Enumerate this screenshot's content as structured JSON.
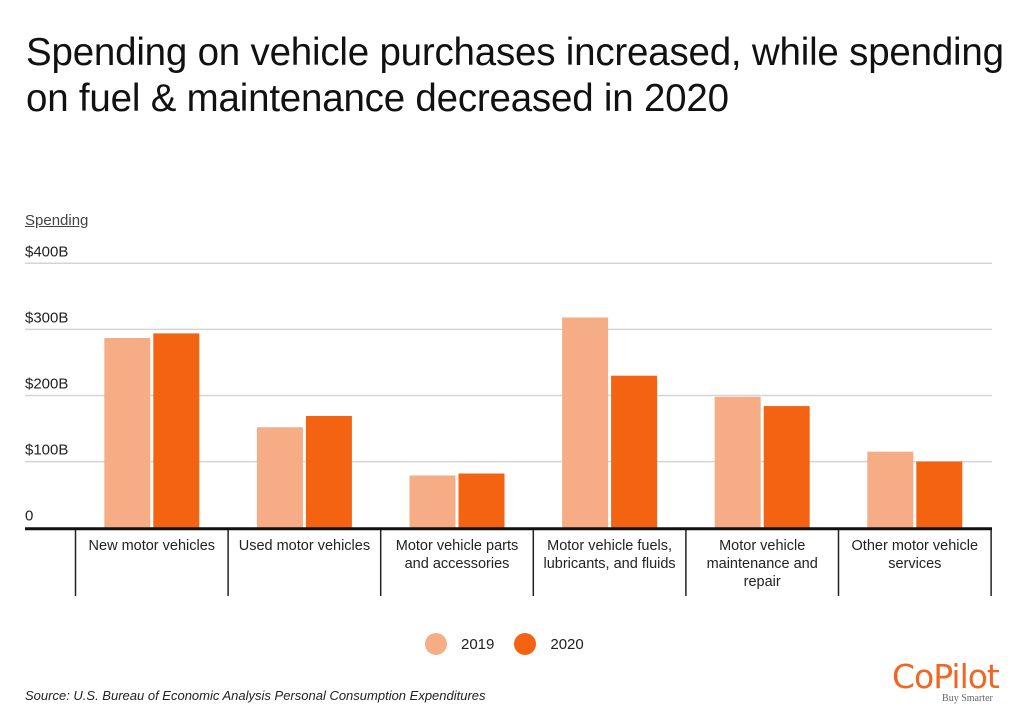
{
  "title": "Spending on vehicle purchases increased, while spending on fuel & maintenance decreased in 2020",
  "source": "Source:  U.S. Bureau of Economic Analysis Personal Consumption Expenditures",
  "logo": {
    "word": "CoPilot",
    "tagline": "Buy Smarter"
  },
  "chart_data": {
    "type": "bar",
    "title": "Spending on vehicle purchases increased, while spending on fuel & maintenance decreased in 2020",
    "ylabel": "Spending",
    "xlabel": "",
    "ylim": [
      0,
      400
    ],
    "yunit": "billions USD",
    "yticks": [
      {
        "value": 0,
        "label": "0"
      },
      {
        "value": 100,
        "label": "$100B"
      },
      {
        "value": 200,
        "label": "$200B"
      },
      {
        "value": 300,
        "label": "$300B"
      },
      {
        "value": 400,
        "label": "$400B"
      }
    ],
    "grid": true,
    "legend_position": "bottom-center",
    "categories": [
      [
        "New motor vehicles"
      ],
      [
        "Used motor vehicles"
      ],
      [
        "Motor vehicle parts",
        "and accessories"
      ],
      [
        "Motor vehicle fuels,",
        "lubricants, and fluids"
      ],
      [
        "Motor vehicle",
        "maintenance and",
        "repair"
      ],
      [
        "Other motor vehicle",
        "services"
      ]
    ],
    "series": [
      {
        "name": "2019",
        "color": "#f6ad85",
        "values": [
          287,
          152,
          79,
          318,
          198,
          115
        ]
      },
      {
        "name": "2020",
        "color": "#f46311",
        "values": [
          294,
          169,
          82,
          230,
          184,
          100
        ]
      }
    ]
  }
}
